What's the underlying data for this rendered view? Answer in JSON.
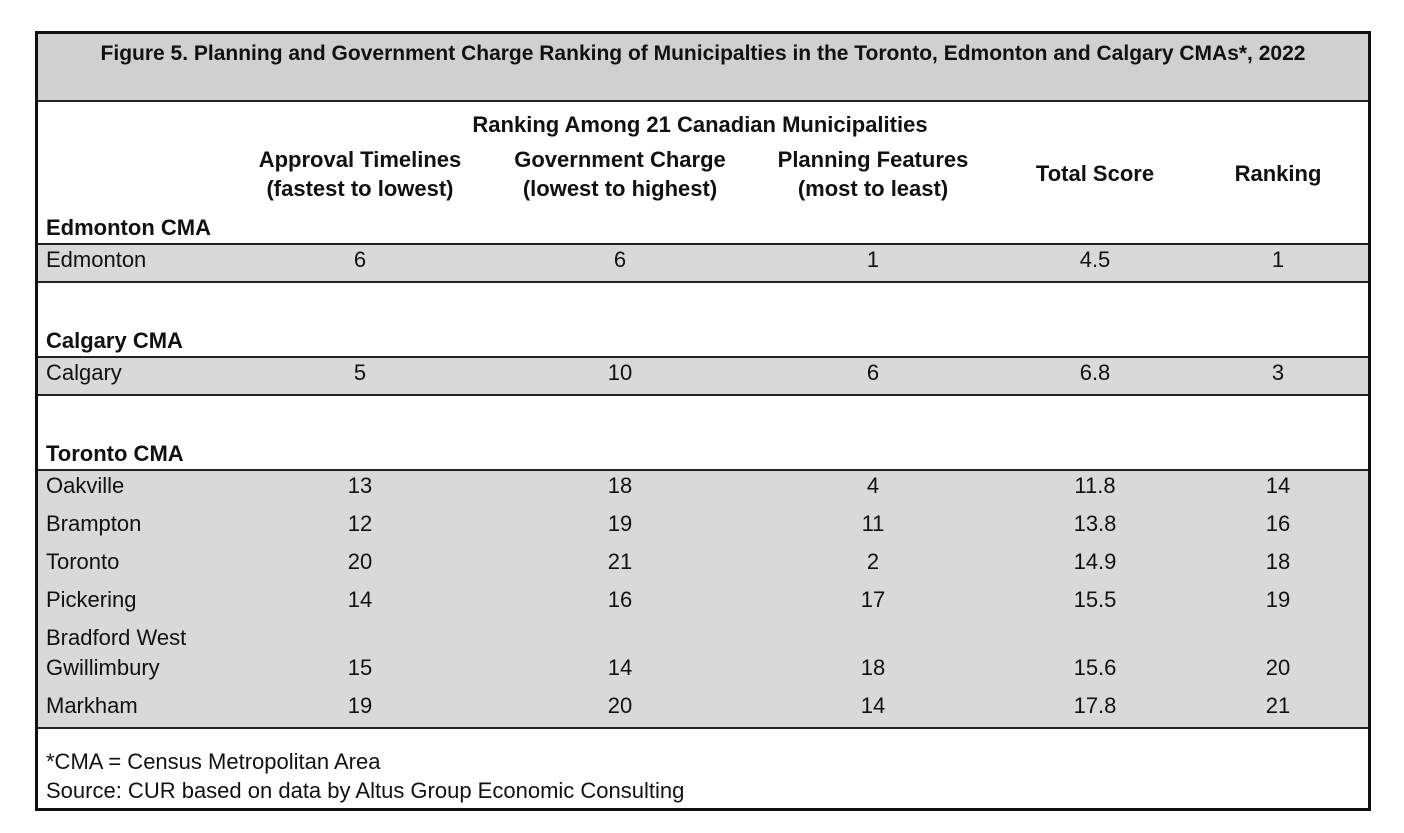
{
  "title": "Figure 5. Planning and Government Charge Ranking of Municipalties in the Toronto, Edmonton and Calgary CMAs*, 2022",
  "table": {
    "group_header": "Ranking Among 21 Canadian Municipalities",
    "columns": [
      [
        "Approval Timelines",
        "(fastest to lowest)"
      ],
      [
        "Government Charge",
        "(lowest to highest)"
      ],
      [
        "Planning Features",
        "(most to least)"
      ],
      [
        "Total Score"
      ],
      [
        "Ranking"
      ]
    ],
    "sections": [
      {
        "name": "Edmonton CMA",
        "rows": [
          [
            "Edmonton",
            6,
            6,
            1,
            4.5,
            1
          ]
        ]
      },
      {
        "name": "Calgary CMA",
        "rows": [
          [
            "Calgary",
            5,
            10,
            6,
            6.8,
            3
          ]
        ]
      },
      {
        "name": "Toronto CMA",
        "rows": [
          [
            "Oakville",
            13,
            18,
            4,
            11.8,
            14
          ],
          [
            "Brampton",
            12,
            19,
            11,
            13.8,
            16
          ],
          [
            "Toronto",
            20,
            21,
            2,
            14.9,
            18
          ],
          [
            "Pickering",
            14,
            16,
            17,
            15.5,
            19
          ],
          [
            "Bradford West Gwillimbury",
            15,
            14,
            18,
            15.6,
            20
          ],
          [
            "Markham",
            19,
            20,
            14,
            17.8,
            21
          ]
        ]
      }
    ]
  },
  "notes": [
    "*CMA = Census Metropolitan Area",
    "Source: CUR based on data by Altus Group Economic Consulting"
  ]
}
